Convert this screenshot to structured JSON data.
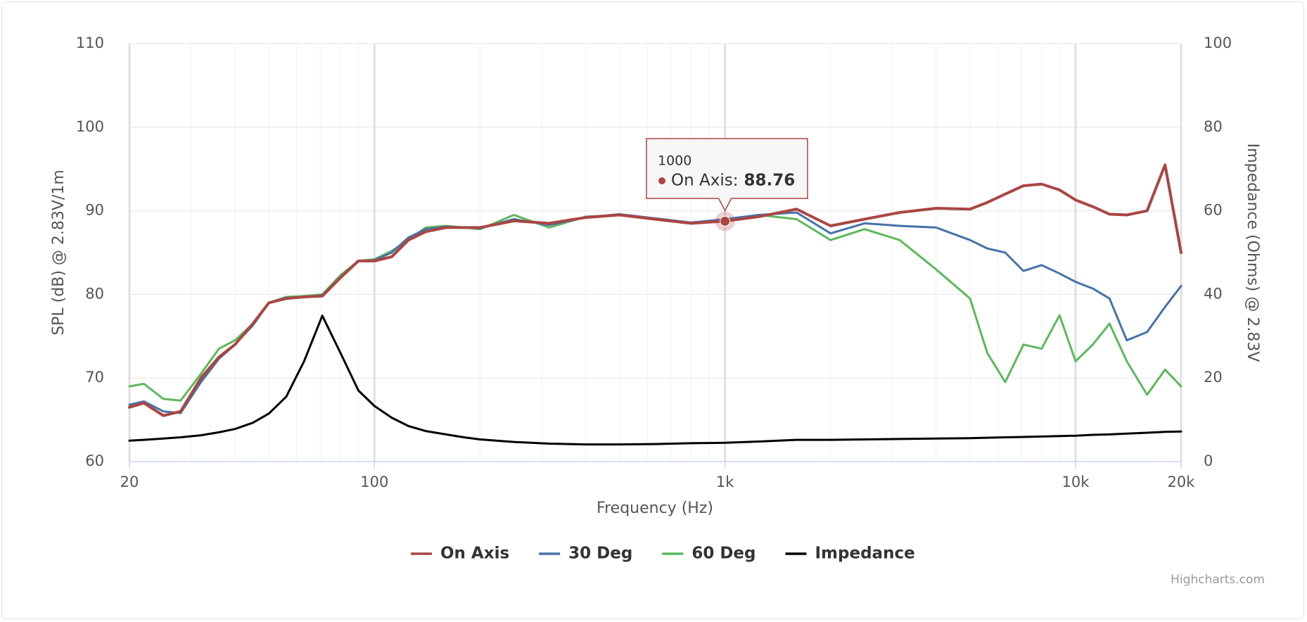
{
  "chart_data": {
    "type": "line",
    "xlabel": "Frequency (Hz)",
    "ylabel": "SPL (dB) @ 2.83V/1m",
    "y2label": "Impedance (Ohms) @ 2.83V",
    "credits": "Highcharts.com",
    "xscale": "log",
    "grid": true,
    "legend": "bottom",
    "xlim": [
      20,
      20000
    ],
    "xticks": [
      20,
      100,
      {
        "value": 1000,
        "label": "1k"
      },
      {
        "value": 10000,
        "label": "10k"
      },
      {
        "value": 20000,
        "label": "20k"
      }
    ],
    "ylim": [
      60,
      110
    ],
    "yticks": [
      60,
      70,
      80,
      90,
      100,
      110
    ],
    "y2lim": [
      0,
      100
    ],
    "y2ticks": [
      0,
      20,
      40,
      60,
      80,
      100
    ],
    "x": [
      20,
      22,
      25,
      28,
      32,
      36,
      40,
      45,
      50,
      56,
      63,
      71,
      80,
      90,
      100,
      112,
      125,
      140,
      160,
      180,
      200,
      250,
      315,
      400,
      500,
      630,
      800,
      1000,
      1250,
      1600,
      2000,
      2500,
      3150,
      4000,
      5000,
      5600,
      6300,
      7100,
      8000,
      9000,
      10000,
      11200,
      12500,
      14000,
      16000,
      18000,
      20000
    ],
    "series": [
      {
        "name": "On Axis",
        "color": "#aa4643",
        "values": [
          66.5,
          67,
          65.5,
          66,
          70,
          72.5,
          74,
          76.5,
          79,
          79.5,
          79.7,
          79.8,
          82,
          84,
          84,
          84.5,
          86.5,
          87.5,
          88,
          88,
          88,
          88.8,
          88.5,
          89.2,
          89.5,
          89,
          88.5,
          88.76,
          89.3,
          90.2,
          88.2,
          89,
          89.8,
          90.3,
          90.2,
          91,
          92,
          93,
          93.2,
          92.5,
          91.3,
          90.5,
          89.6,
          89.5,
          90,
          95.5,
          85
        ]
      },
      {
        "name": "30 Deg",
        "color": "#4572a7",
        "values": [
          66.8,
          67.2,
          66,
          65.8,
          69.5,
          72.3,
          74,
          76.3,
          79,
          79.6,
          79.7,
          79.9,
          82.1,
          84,
          84.1,
          85,
          86.8,
          87.8,
          88.1,
          88,
          87.9,
          89,
          88.3,
          89.2,
          89.6,
          89.1,
          88.6,
          89,
          89.5,
          89.8,
          87.3,
          88.5,
          88.2,
          88,
          86.5,
          85.5,
          85,
          82.8,
          83.5,
          82.5,
          81.5,
          80.7,
          79.5,
          74.5,
          75.5,
          78.5,
          81
        ]
      },
      {
        "name": "60 Deg",
        "color": "#5cb85c",
        "values": [
          69,
          69.3,
          67.5,
          67.3,
          70.5,
          73.5,
          74.5,
          76.5,
          79,
          79.7,
          79.8,
          80,
          82.3,
          84,
          84.2,
          85.2,
          86.5,
          88,
          88.2,
          88,
          87.8,
          89.5,
          88,
          89.3,
          89.5,
          89,
          88.5,
          88.9,
          89.5,
          89,
          86.5,
          87.8,
          86.5,
          83,
          79.5,
          73,
          69.5,
          74,
          73.5,
          77.5,
          72,
          74,
          76.5,
          72,
          68,
          71,
          69
        ]
      },
      {
        "name": "Impedance",
        "color": "#000000",
        "axis": "y2",
        "values": [
          5,
          5.2,
          5.5,
          5.8,
          6.3,
          7,
          7.8,
          9.3,
          11.5,
          15.5,
          24,
          34.9,
          26,
          17,
          13.3,
          10.5,
          8.5,
          7.3,
          6.5,
          5.8,
          5.3,
          4.7,
          4.3,
          4.1,
          4.1,
          4.2,
          4.4,
          4.5,
          4.8,
          5.2,
          5.2,
          5.3,
          5.4,
          5.5,
          5.6,
          5.7,
          5.8,
          5.9,
          6,
          6.1,
          6.2,
          6.4,
          6.5,
          6.7,
          6.9,
          7.1,
          7.2
        ]
      }
    ],
    "tooltip": {
      "series": 0,
      "point": 27
    }
  }
}
